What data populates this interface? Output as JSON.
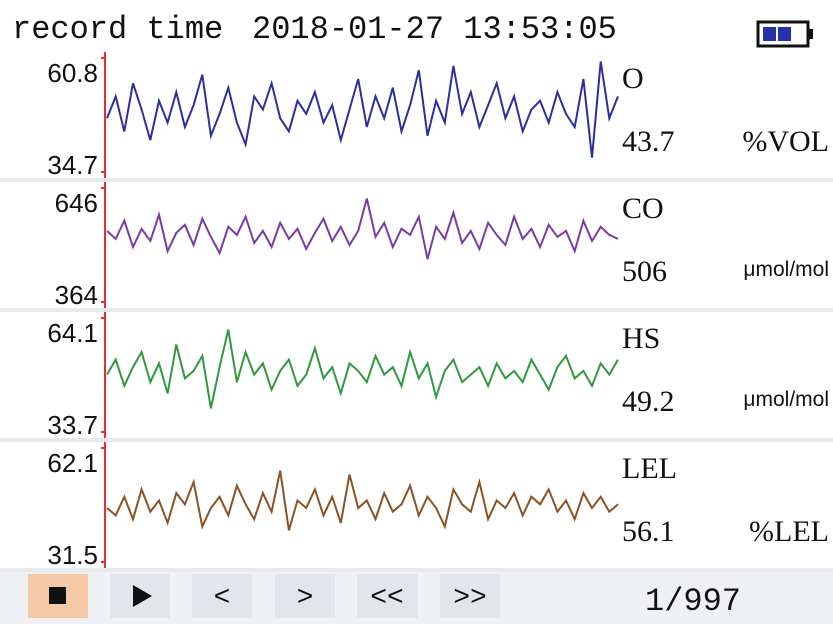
{
  "header": {
    "label": "record time",
    "timestamp": "2018-01-27 13:53:05"
  },
  "chart_data": [
    {
      "type": "line",
      "name": "O",
      "reading": 43.7,
      "unit": "%VOL",
      "color": "#2b2f9e",
      "ylim": [
        34.7,
        60.8
      ],
      "yticks": [
        34.7,
        60.8
      ],
      "values": [
        47,
        52,
        44,
        55,
        49,
        42,
        51,
        46,
        53,
        45,
        50,
        57,
        43,
        48,
        54,
        46,
        41,
        52,
        49,
        55,
        47,
        44,
        51,
        48,
        53,
        46,
        50,
        42,
        49,
        56,
        45,
        52,
        47,
        54,
        44,
        50,
        58,
        43,
        51,
        46,
        59,
        48,
        53,
        45,
        50,
        55,
        47,
        52,
        44,
        49,
        51,
        46,
        53,
        48,
        45,
        56,
        38,
        60,
        47,
        52
      ]
    },
    {
      "type": "line",
      "name": "CO",
      "reading": 506,
      "unit": "μmol/mol",
      "color": "#7b3aa6",
      "ylim": [
        364,
        646
      ],
      "yticks": [
        364,
        646
      ],
      "values": [
        540,
        520,
        565,
        500,
        545,
        515,
        580,
        490,
        535,
        555,
        505,
        570,
        525,
        485,
        550,
        530,
        575,
        510,
        540,
        500,
        560,
        520,
        545,
        495,
        535,
        570,
        515,
        550,
        505,
        540,
        620,
        525,
        560,
        500,
        545,
        530,
        575,
        470,
        550,
        520,
        585,
        510,
        540,
        495,
        560,
        530,
        505,
        575,
        520,
        545,
        500,
        555,
        525,
        540,
        490,
        565,
        515,
        550,
        530,
        520
      ]
    },
    {
      "type": "line",
      "name": "HS",
      "reading": 49.2,
      "unit": "μmol/mol",
      "color": "#2f9a3c",
      "ylim": [
        33.7,
        64.1
      ],
      "yticks": [
        33.7,
        64.1
      ],
      "values": [
        49,
        53,
        46,
        51,
        55,
        47,
        52,
        44,
        57,
        48,
        50,
        54,
        40,
        51,
        61,
        47,
        55,
        49,
        52,
        45,
        50,
        53,
        46,
        49,
        56,
        48,
        51,
        44,
        52,
        50,
        47,
        54,
        49,
        51,
        46,
        55,
        48,
        52,
        43,
        50,
        53,
        47,
        49,
        51,
        46,
        52,
        48,
        50,
        47,
        53,
        49,
        45,
        51,
        54,
        48,
        50,
        46,
        52,
        49,
        53
      ]
    },
    {
      "type": "line",
      "name": "LEL",
      "reading": 56.1,
      "unit": "%LEL",
      "color": "#8b5224",
      "ylim": [
        31.5,
        62.1
      ],
      "yticks": [
        31.5,
        62.1
      ],
      "values": [
        46,
        44,
        49,
        43,
        51,
        45,
        48,
        42,
        50,
        47,
        53,
        41,
        46,
        49,
        44,
        52,
        47,
        43,
        50,
        45,
        56,
        40,
        48,
        46,
        51,
        44,
        49,
        42,
        55,
        46,
        48,
        43,
        50,
        45,
        47,
        52,
        44,
        49,
        46,
        41,
        51,
        47,
        45,
        53,
        43,
        48,
        46,
        50,
        44,
        49,
        47,
        51,
        45,
        48,
        43,
        50,
        46,
        49,
        45,
        47
      ]
    }
  ],
  "controls": {
    "prev": "<",
    "next": ">",
    "first": "<<",
    "last": ">>"
  },
  "page": "1/997"
}
